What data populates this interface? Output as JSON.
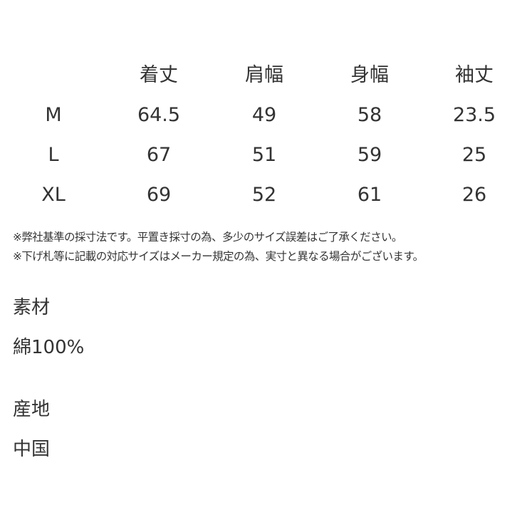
{
  "size_table": {
    "headers": [
      "",
      "着丈",
      "肩幅",
      "身幅",
      "袖丈"
    ],
    "rows": [
      [
        "M",
        "64.5",
        "49",
        "58",
        "23.5"
      ],
      [
        "L",
        "67",
        "51",
        "59",
        "25"
      ],
      [
        "XL",
        "69",
        "52",
        "61",
        "26"
      ]
    ]
  },
  "notes": [
    "※弊社基準の採寸法です。平置き採寸の為、多少のサイズ誤差はご了承ください。",
    "※下げ札等に記載の対応サイズはメーカー規定の為、実寸と異なる場合がございます。"
  ],
  "material": {
    "label": "素材",
    "value": "綿100%"
  },
  "origin": {
    "label": "産地",
    "value": "中国"
  }
}
